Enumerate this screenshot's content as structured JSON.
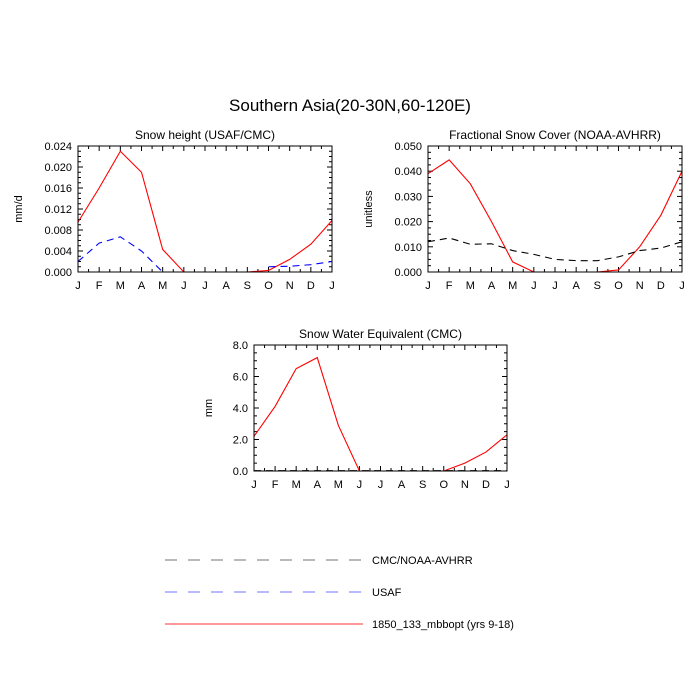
{
  "figure": {
    "title": "Southern Asia(20-30N,60-120E)"
  },
  "legend": [
    {
      "name": "CMC/NOAA-AVHRR",
      "color": "#000000",
      "dash": "dashed"
    },
    {
      "name": "USAF",
      "color": "#0000ff",
      "dash": "dashed"
    },
    {
      "name": "1850_133_mbbopt (yrs 9-18)",
      "color": "#ff0000",
      "dash": "solid"
    }
  ],
  "chart_data": [
    {
      "type": "line",
      "title": "Snow height (USAF/CMC)",
      "ylabel": "mm/d",
      "categories": [
        "J",
        "F",
        "M",
        "A",
        "M",
        "J",
        "J",
        "A",
        "S",
        "O",
        "N",
        "D",
        "J"
      ],
      "ylim": [
        0,
        0.024
      ],
      "yticks": [
        "0.000",
        "0.004",
        "0.008",
        "0.012",
        "0.016",
        "0.020",
        "0.024"
      ],
      "series": [
        {
          "name": "1850_133_mbbopt (yrs 9-18)",
          "color": "#ff0000",
          "dash": "solid",
          "values": [
            0.0095,
            0.016,
            0.023,
            0.019,
            0.0043,
            0.0,
            0.0,
            0.0,
            0.0,
            0.0003,
            0.0024,
            0.0053,
            0.0098
          ]
        },
        {
          "name": "USAF",
          "color": "#0000ff",
          "dash": "dashed",
          "values": [
            0.002,
            0.0055,
            0.0067,
            0.004,
            0.0,
            null,
            null,
            null,
            null,
            0.001,
            0.0011,
            0.0014,
            0.002
          ]
        }
      ]
    },
    {
      "type": "line",
      "title": "Fractional Snow Cover (NOAA-AVHRR)",
      "ylabel": "unitless",
      "categories": [
        "J",
        "F",
        "M",
        "A",
        "M",
        "J",
        "J",
        "A",
        "S",
        "O",
        "N",
        "D",
        "J"
      ],
      "ylim": [
        0,
        0.05
      ],
      "yticks": [
        "0.000",
        "0.010",
        "0.020",
        "0.030",
        "0.040",
        "0.050"
      ],
      "series": [
        {
          "name": "1850_133_mbbopt (yrs 9-18)",
          "color": "#ff0000",
          "dash": "solid",
          "values": [
            0.039,
            0.0445,
            0.035,
            0.02,
            0.004,
            0.0,
            0.0,
            0.0,
            0.0,
            0.0008,
            0.01,
            0.0225,
            0.04
          ]
        },
        {
          "name": "CMC/NOAA-AVHRR",
          "color": "#000000",
          "dash": "dashed",
          "values": [
            0.012,
            0.0135,
            0.011,
            0.0112,
            0.0085,
            0.007,
            0.005,
            0.0045,
            0.0045,
            0.006,
            0.0085,
            0.0095,
            0.012
          ]
        }
      ]
    },
    {
      "type": "line",
      "title": "Snow Water Equivalent (CMC)",
      "ylabel": "mm",
      "categories": [
        "J",
        "F",
        "M",
        "A",
        "M",
        "J",
        "J",
        "A",
        "S",
        "O",
        "N",
        "D",
        "J"
      ],
      "ylim": [
        0,
        8
      ],
      "yticks": [
        "0.0",
        "2.0",
        "4.0",
        "6.0",
        "8.0"
      ],
      "series": [
        {
          "name": "1850_133_mbbopt (yrs 9-18)",
          "color": "#ff0000",
          "dash": "solid",
          "values": [
            2.2,
            4.1,
            6.5,
            7.2,
            2.9,
            0.0,
            0.0,
            0.0,
            0.0,
            0.0,
            0.5,
            1.2,
            2.3
          ]
        },
        {
          "name": "CMC/NOAA-AVHRR",
          "color": "#000000",
          "dash": "dashed",
          "values": [
            0.02,
            0.02,
            0.02,
            0.02,
            0.02,
            0.02,
            0.02,
            0.02,
            0.02,
            0.02,
            0.02,
            0.02,
            0.02
          ]
        }
      ]
    }
  ]
}
